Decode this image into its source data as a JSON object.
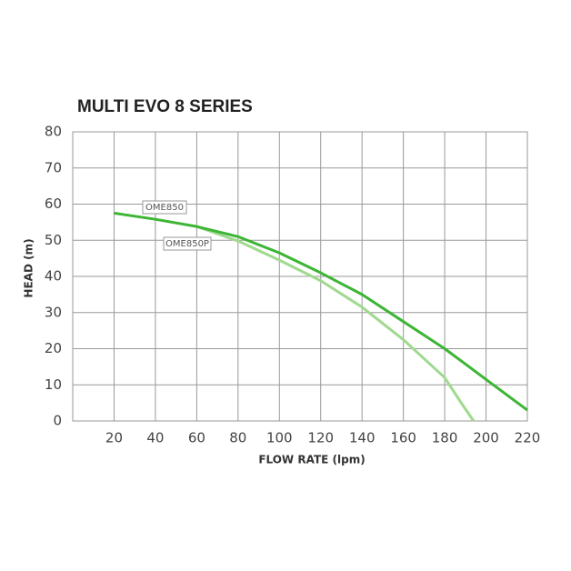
{
  "chart_data": {
    "type": "line",
    "title": "MULTI EVO 8 SERIES",
    "x_label": "FLOW RATE (lpm)",
    "y_label": "HEAD (m)",
    "xlim": [
      0,
      220
    ],
    "xticks": [
      20,
      40,
      60,
      80,
      100,
      120,
      140,
      160,
      180,
      200,
      220
    ],
    "ylim": [
      0,
      80
    ],
    "yticks": [
      0,
      10,
      20,
      30,
      40,
      50,
      60,
      70,
      80
    ],
    "grid": true,
    "series": [
      {
        "name": "OME850",
        "color": "#3db535",
        "x": [
          20,
          40,
          60,
          80,
          100,
          120,
          140,
          160,
          180,
          200,
          220
        ],
        "values": [
          57.5,
          55.8,
          53.8,
          51,
          46.5,
          41,
          35,
          27.5,
          20,
          11.5,
          3
        ]
      },
      {
        "name": "OME850P",
        "color": "#a0d98f",
        "x": [
          60,
          80,
          100,
          120,
          140,
          160,
          180,
          188,
          194
        ],
        "values": [
          53.8,
          49.8,
          44.5,
          38.8,
          31.5,
          22.5,
          12,
          5,
          0
        ]
      }
    ]
  }
}
